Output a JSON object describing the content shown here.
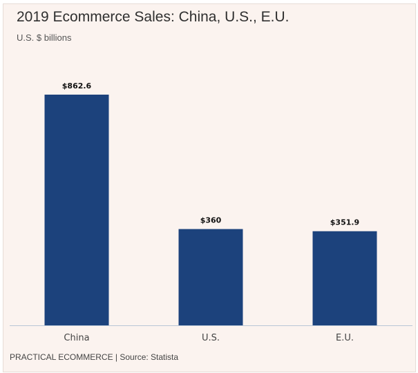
{
  "chart_data": {
    "type": "bar",
    "title": "2019 Ecommerce Sales: China, U.S., E.U.",
    "subtitle": "U.S. $ billions",
    "xlabel": "",
    "ylabel": "",
    "categories": [
      "China",
      "U.S.",
      "E.U."
    ],
    "values": [
      862.6,
      360,
      351.9
    ],
    "value_labels": [
      "$862.6",
      "$360",
      "$351.9"
    ],
    "ylim": [
      0,
      862.6
    ],
    "grid": false,
    "legend": "none",
    "bar_color": "#1c427c",
    "axis_color": "#b8c6d6",
    "source": "PRACTICAL ECOMMERCE | Source: Statista"
  }
}
